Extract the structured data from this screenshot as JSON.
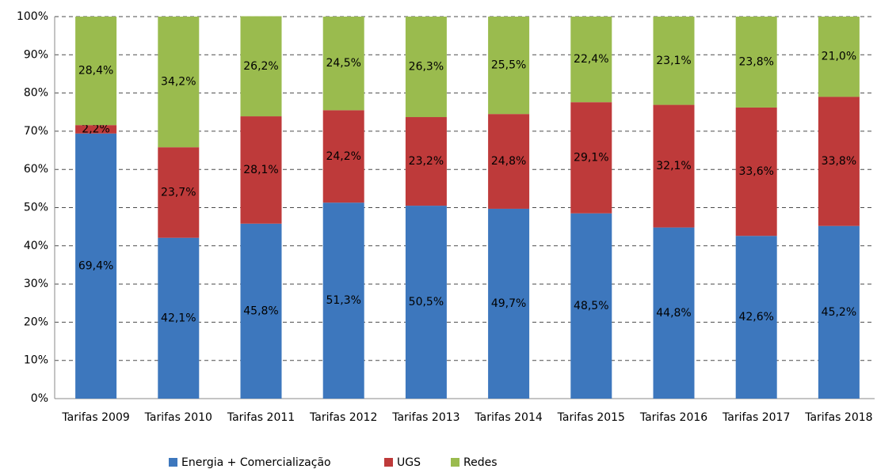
{
  "chart_data": {
    "type": "stacked_bar",
    "categories": [
      "Tarifas 2009",
      "Tarifas 2010",
      "Tarifas 2011",
      "Tarifas 2012",
      "Tarifas 2013",
      "Tarifas 2014",
      "Tarifas 2015",
      "Tarifas 2016",
      "Tarifas 2017",
      "Tarifas 2018"
    ],
    "series": [
      {
        "name": "Energia + Comercialização",
        "color": "#3d77bd",
        "values": [
          69.4,
          42.1,
          45.8,
          51.3,
          50.5,
          49.7,
          48.5,
          44.8,
          42.6,
          45.2
        ],
        "value_labels": [
          "69,4%",
          "42,1%",
          "45,8%",
          "51,3%",
          "50,5%",
          "49,7%",
          "48,5%",
          "44,8%",
          "42,6%",
          "45,2%"
        ]
      },
      {
        "name": "UGS",
        "color": "#be3a3a",
        "values": [
          2.2,
          23.7,
          28.1,
          24.2,
          23.2,
          24.8,
          29.1,
          32.1,
          33.6,
          33.8
        ],
        "value_labels": [
          "2,2%",
          "23,7%",
          "28,1%",
          "24,2%",
          "23,2%",
          "24,8%",
          "29,1%",
          "32,1%",
          "33,6%",
          "33,8%"
        ]
      },
      {
        "name": "Redes",
        "color": "#9abb4e",
        "values": [
          28.4,
          34.2,
          26.2,
          24.5,
          26.3,
          25.5,
          22.4,
          23.1,
          23.8,
          21.0
        ],
        "value_labels": [
          "28,4%",
          "34,2%",
          "26,2%",
          "24,5%",
          "26,3%",
          "25,5%",
          "22,4%",
          "23,1%",
          "23,8%",
          "21,0%"
        ]
      }
    ],
    "ylim": [
      0,
      100
    ],
    "yticks": [
      {
        "value": 0,
        "label": "0%"
      },
      {
        "value": 10,
        "label": "10%"
      },
      {
        "value": 20,
        "label": "20%"
      },
      {
        "value": 30,
        "label": "30%"
      },
      {
        "value": 40,
        "label": "40%"
      },
      {
        "value": 50,
        "label": "50%"
      },
      {
        "value": 60,
        "label": "60%"
      },
      {
        "value": 70,
        "label": "70%"
      },
      {
        "value": 80,
        "label": "80%"
      },
      {
        "value": 90,
        "label": "90%"
      },
      {
        "value": 100,
        "label": "100%"
      }
    ],
    "grid": true,
    "legend": "bottom"
  }
}
